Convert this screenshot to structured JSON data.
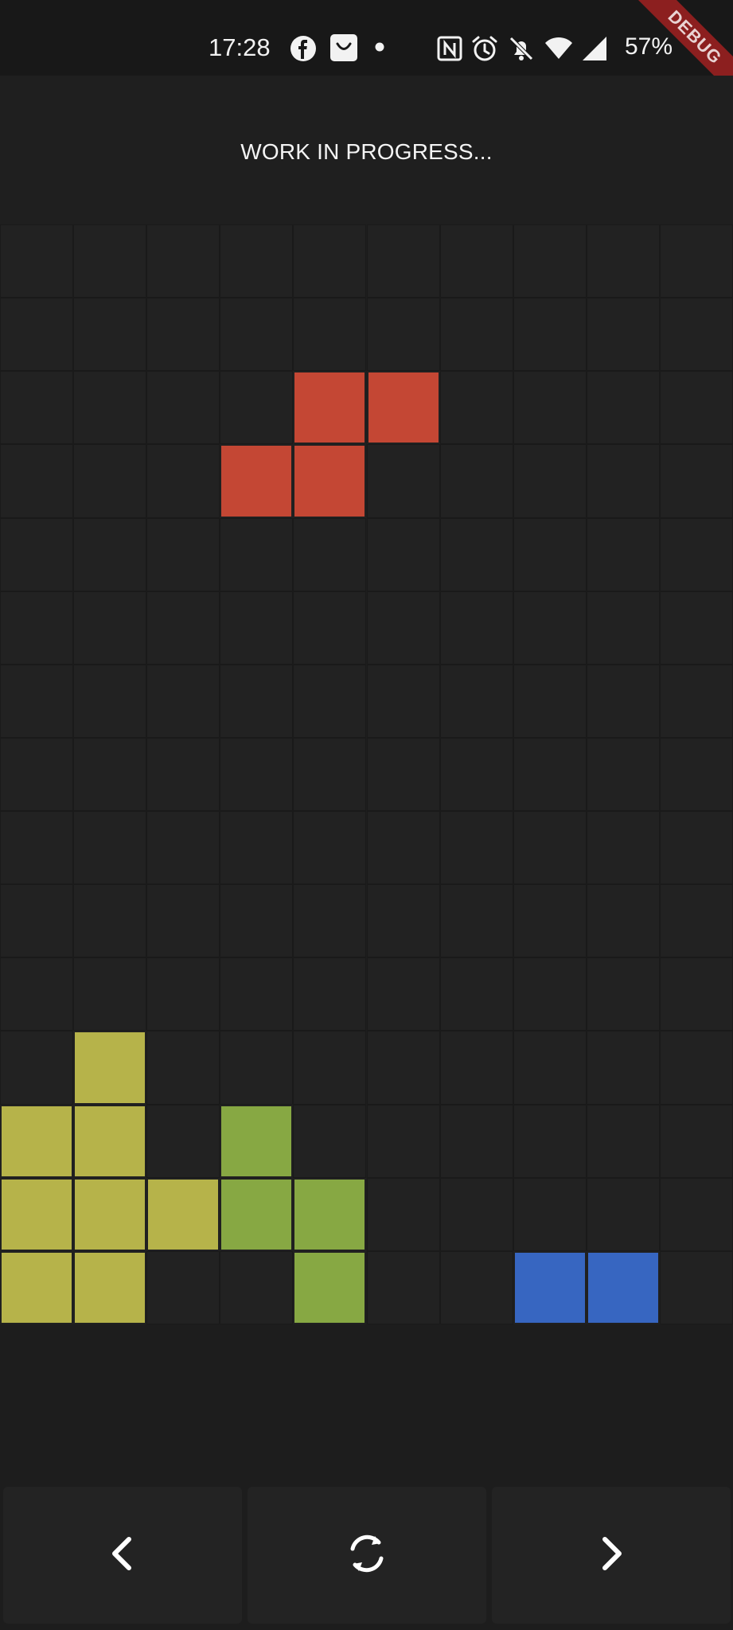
{
  "status_bar": {
    "time": "17:28",
    "battery": "57%",
    "icons": [
      "facebook-icon",
      "shopping-bag-icon",
      "dot-icon",
      "nfc-icon",
      "alarm-icon",
      "bell-off-icon",
      "wifi-icon",
      "cellular-signal-icon"
    ]
  },
  "debug_banner": "DEBUG",
  "header": {
    "title": "WORK IN PROGRESS..."
  },
  "board": {
    "columns": 10,
    "rows": 15,
    "background_cell_color": "#222222",
    "pieces": [
      {
        "name": "red-s-piece",
        "color": "#c44734",
        "cells": [
          [
            4,
            2
          ],
          [
            5,
            2
          ],
          [
            3,
            3
          ],
          [
            4,
            3
          ]
        ]
      },
      {
        "name": "olive-stack",
        "color": "#b6b34a",
        "cells": [
          [
            1,
            11
          ],
          [
            0,
            12
          ],
          [
            1,
            12
          ],
          [
            0,
            13
          ],
          [
            1,
            13
          ],
          [
            2,
            13
          ],
          [
            0,
            14
          ],
          [
            1,
            14
          ]
        ]
      },
      {
        "name": "green-piece",
        "color": "#87a843",
        "cells": [
          [
            3,
            12
          ],
          [
            3,
            13
          ],
          [
            4,
            13
          ],
          [
            4,
            14
          ]
        ]
      },
      {
        "name": "blue-piece",
        "color": "#3766c1",
        "cells": [
          [
            7,
            14
          ],
          [
            8,
            14
          ]
        ]
      }
    ]
  },
  "controls": {
    "left": {
      "icon": "chevron-left-icon"
    },
    "rotate": {
      "icon": "rotate-icon"
    },
    "right": {
      "icon": "chevron-right-icon"
    }
  }
}
